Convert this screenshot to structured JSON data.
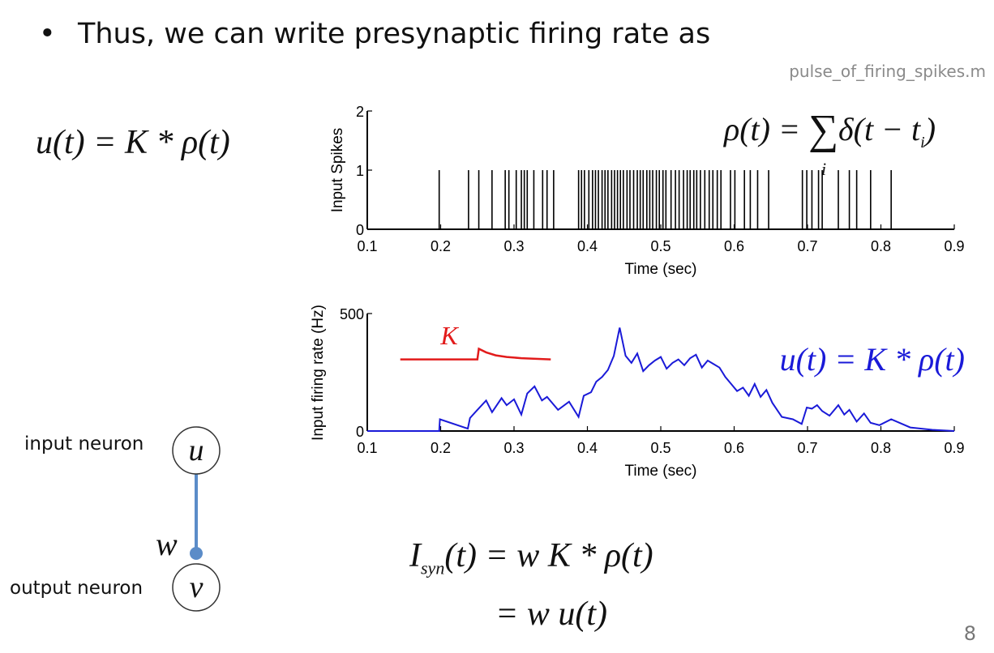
{
  "slide": {
    "bullet_symbol": "•",
    "bullet_text": "Thus, we can write presynaptic firing rate as",
    "filename": "pulse_of_firing_spikes.m",
    "page_number": "8"
  },
  "equations": {
    "left": "u(t) = K * ρ(t)",
    "rho_lhs": "ρ(t) = ",
    "rho_sum": "∑",
    "rho_sum_index": "i",
    "rho_rhs": "δ(t − t",
    "rho_sub": "i",
    "rho_close": ")",
    "isyn_I": "I",
    "isyn_sub": "syn",
    "isyn_rest": "(t) = w K * ρ(t)",
    "isyn_line2": "= w u(t)"
  },
  "network": {
    "input_label": "input neuron",
    "output_label": "output neuron",
    "input_symbol": "u",
    "output_symbol": "v",
    "weight_symbol": "w",
    "edge_color": "#5b8cc8",
    "node_border": "#333333"
  },
  "chart_data": [
    {
      "type": "line",
      "subtype": "spike raster",
      "xlabel": "Time (sec)",
      "ylabel": "Input Spikes",
      "xlim": [
        0.1,
        0.9
      ],
      "ylim": [
        0,
        2
      ],
      "x_ticks": [
        "0.1",
        "0.2",
        "0.3",
        "0.4",
        "0.5",
        "0.6",
        "0.7",
        "0.8",
        "0.9"
      ],
      "y_ticks": [
        "0",
        "1",
        "2"
      ],
      "spike_height": 1,
      "color": "#000000",
      "spike_times": [
        0.198,
        0.238,
        0.252,
        0.27,
        0.288,
        0.293,
        0.303,
        0.31,
        0.314,
        0.318,
        0.327,
        0.339,
        0.345,
        0.354,
        0.388,
        0.392,
        0.396,
        0.402,
        0.407,
        0.411,
        0.415,
        0.42,
        0.424,
        0.428,
        0.433,
        0.437,
        0.441,
        0.445,
        0.449,
        0.454,
        0.458,
        0.463,
        0.468,
        0.472,
        0.476,
        0.481,
        0.485,
        0.489,
        0.494,
        0.498,
        0.503,
        0.507,
        0.514,
        0.52,
        0.525,
        0.531,
        0.536,
        0.54,
        0.545,
        0.549,
        0.554,
        0.56,
        0.566,
        0.571,
        0.577,
        0.582,
        0.595,
        0.601,
        0.614,
        0.622,
        0.632,
        0.647,
        0.693,
        0.699,
        0.706,
        0.715,
        0.72,
        0.742,
        0.757,
        0.767,
        0.786,
        0.814
      ],
      "annotation": "ρ(t) = ∑ δ(t − t_i)"
    },
    {
      "type": "line",
      "xlabel": "Time (sec)",
      "ylabel": "Input firing rate (Hz)",
      "xlim": [
        0.1,
        0.9
      ],
      "ylim": [
        0,
        500
      ],
      "x_ticks": [
        "0.1",
        "0.2",
        "0.3",
        "0.4",
        "0.5",
        "0.6",
        "0.7",
        "0.8",
        "0.9"
      ],
      "y_ticks": [
        "0",
        "500"
      ],
      "series": [
        {
          "name": "u(t) = K * ρ(t)",
          "color": "#1a1ad8",
          "x": [
            0.1,
            0.198,
            0.199,
            0.237,
            0.24,
            0.25,
            0.262,
            0.27,
            0.283,
            0.29,
            0.3,
            0.31,
            0.318,
            0.328,
            0.338,
            0.345,
            0.36,
            0.375,
            0.388,
            0.395,
            0.405,
            0.412,
            0.42,
            0.428,
            0.436,
            0.444,
            0.452,
            0.46,
            0.468,
            0.476,
            0.484,
            0.492,
            0.5,
            0.508,
            0.516,
            0.524,
            0.532,
            0.54,
            0.548,
            0.556,
            0.564,
            0.572,
            0.58,
            0.588,
            0.596,
            0.604,
            0.612,
            0.62,
            0.628,
            0.636,
            0.644,
            0.652,
            0.665,
            0.68,
            0.692,
            0.699,
            0.706,
            0.713,
            0.72,
            0.73,
            0.742,
            0.75,
            0.757,
            0.767,
            0.777,
            0.786,
            0.798,
            0.814,
            0.84,
            0.87,
            0.9
          ],
          "y": [
            0,
            0,
            50,
            10,
            55,
            90,
            130,
            80,
            140,
            110,
            135,
            70,
            160,
            190,
            130,
            145,
            90,
            125,
            60,
            150,
            165,
            210,
            230,
            260,
            320,
            440,
            320,
            290,
            330,
            255,
            280,
            300,
            315,
            265,
            290,
            305,
            280,
            310,
            325,
            270,
            300,
            285,
            270,
            230,
            200,
            170,
            185,
            150,
            200,
            145,
            175,
            120,
            60,
            50,
            30,
            100,
            95,
            110,
            85,
            65,
            110,
            70,
            90,
            40,
            75,
            35,
            25,
            50,
            15,
            5,
            0
          ]
        }
      ],
      "kernel": {
        "name": "K",
        "color": "#e21b1b",
        "x": [
          0.145,
          0.25,
          0.252,
          0.262,
          0.275,
          0.29,
          0.31,
          0.35
        ],
        "y": [
          305,
          305,
          350,
          335,
          322,
          315,
          310,
          305
        ]
      }
    }
  ]
}
